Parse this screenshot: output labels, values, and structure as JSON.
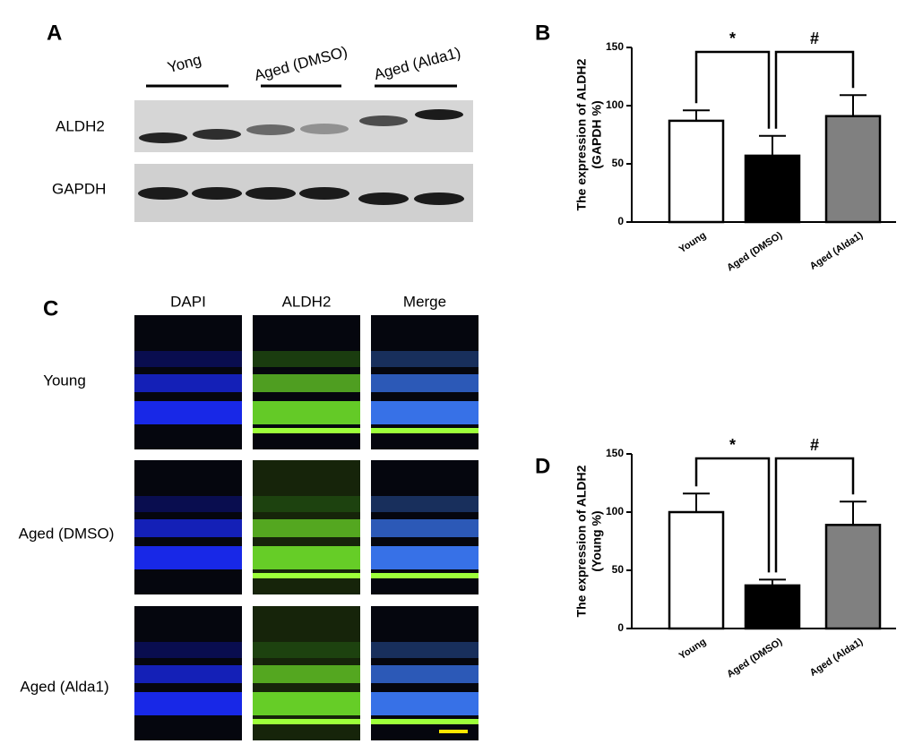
{
  "panel_labels": [
    "A",
    "B",
    "C",
    "D"
  ],
  "blot": {
    "groups": [
      "Yong",
      "Aged (DMSO)",
      "Aged (Alda1)"
    ],
    "rows": [
      "ALDH2",
      "GAPDH"
    ]
  },
  "micro": {
    "columns": [
      "DAPI",
      "ALDH2",
      "Merge"
    ],
    "rows": [
      "Young",
      "Aged (DMSO)",
      "Aged (Alda1)"
    ]
  },
  "chart_data": [
    {
      "type": "bar",
      "ylabel": [
        "The expression of ALDH2",
        "(GAPDH %)"
      ],
      "categories": [
        "Young",
        "Aged (DMSO)",
        "Aged (Alda1)"
      ],
      "values": [
        87,
        57,
        91
      ],
      "errors": [
        9,
        17,
        18
      ],
      "colors": [
        "#ffffff",
        "#000000",
        "#808080"
      ],
      "ylim": [
        0,
        150
      ],
      "yticks": [
        0,
        50,
        100,
        150
      ],
      "annotations": [
        "*",
        "#"
      ]
    },
    {
      "type": "bar",
      "ylabel": [
        "The expression of ALDH2",
        "(Young %)"
      ],
      "categories": [
        "Young",
        "Aged (DMSO)",
        "Aged (Alda1)"
      ],
      "values": [
        100,
        37,
        89
      ],
      "errors": [
        16,
        5,
        20
      ],
      "colors": [
        "#ffffff",
        "#000000",
        "#808080"
      ],
      "ylim": [
        0,
        150
      ],
      "yticks": [
        0,
        50,
        100,
        150
      ],
      "annotations": [
        "*",
        "#"
      ]
    }
  ]
}
